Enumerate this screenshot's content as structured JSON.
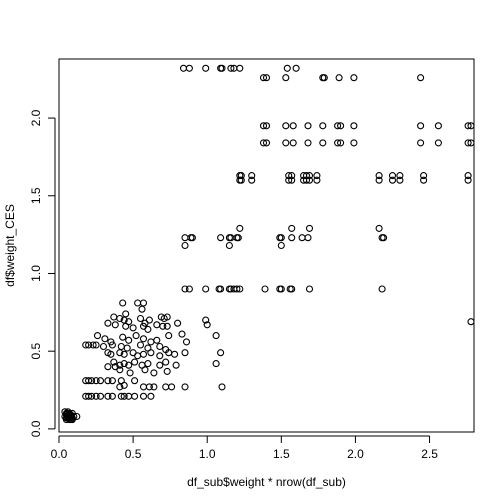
{
  "chart_data": {
    "type": "scatter",
    "title": "",
    "xlabel": "df_sub$weight * nrow(df_sub)",
    "ylabel": "df$weight_CES",
    "xlim": [
      0.0,
      2.8
    ],
    "ylim": [
      -0.02,
      2.38
    ],
    "x_ticks": [
      {
        "value": 0.0,
        "label": "0.0"
      },
      {
        "value": 0.5,
        "label": "0.5"
      },
      {
        "value": 1.0,
        "label": "1.0"
      },
      {
        "value": 1.5,
        "label": "1.5"
      },
      {
        "value": 2.0,
        "label": "2.0"
      },
      {
        "value": 2.5,
        "label": "2.5"
      }
    ],
    "y_ticks": [
      {
        "value": 0.0,
        "label": "0.0"
      },
      {
        "value": 0.5,
        "label": "0.5"
      },
      {
        "value": 1.0,
        "label": "1.0"
      },
      {
        "value": 1.5,
        "label": "1.5"
      },
      {
        "value": 2.0,
        "label": "2.0"
      }
    ],
    "grid": false,
    "marker": "open-circle",
    "marker_color": "#000000",
    "points": [
      [
        0.84,
        2.32
      ],
      [
        0.88,
        2.32
      ],
      [
        0.99,
        2.32
      ],
      [
        1.09,
        2.32
      ],
      [
        1.1,
        2.32
      ],
      [
        1.16,
        2.32
      ],
      [
        1.18,
        2.32
      ],
      [
        1.22,
        2.32
      ],
      [
        1.54,
        2.32
      ],
      [
        1.6,
        2.32
      ],
      [
        1.38,
        2.26
      ],
      [
        1.4,
        2.26
      ],
      [
        1.53,
        2.26
      ],
      [
        1.78,
        2.26
      ],
      [
        1.79,
        2.26
      ],
      [
        1.89,
        2.26
      ],
      [
        1.99,
        2.26
      ],
      [
        2.44,
        2.26
      ],
      [
        1.38,
        1.95
      ],
      [
        1.4,
        1.95
      ],
      [
        1.53,
        1.95
      ],
      [
        1.58,
        1.95
      ],
      [
        1.68,
        1.95
      ],
      [
        1.78,
        1.95
      ],
      [
        1.88,
        1.95
      ],
      [
        1.9,
        1.95
      ],
      [
        1.99,
        1.95
      ],
      [
        2.44,
        1.95
      ],
      [
        2.56,
        1.95
      ],
      [
        2.76,
        1.95
      ],
      [
        2.78,
        1.95
      ],
      [
        1.38,
        1.84
      ],
      [
        1.4,
        1.84
      ],
      [
        1.53,
        1.84
      ],
      [
        1.58,
        1.84
      ],
      [
        1.68,
        1.84
      ],
      [
        1.78,
        1.84
      ],
      [
        1.88,
        1.84
      ],
      [
        1.9,
        1.84
      ],
      [
        1.99,
        1.84
      ],
      [
        2.44,
        1.84
      ],
      [
        2.56,
        1.84
      ],
      [
        2.76,
        1.84
      ],
      [
        2.78,
        1.84
      ],
      [
        1.22,
        1.63
      ],
      [
        1.23,
        1.63
      ],
      [
        1.3,
        1.63
      ],
      [
        1.55,
        1.63
      ],
      [
        1.57,
        1.63
      ],
      [
        1.65,
        1.63
      ],
      [
        1.67,
        1.63
      ],
      [
        1.69,
        1.63
      ],
      [
        1.74,
        1.63
      ],
      [
        2.16,
        1.63
      ],
      [
        2.25,
        1.63
      ],
      [
        2.3,
        1.63
      ],
      [
        2.46,
        1.63
      ],
      [
        2.76,
        1.63
      ],
      [
        1.22,
        1.6
      ],
      [
        1.23,
        1.6
      ],
      [
        1.3,
        1.6
      ],
      [
        1.55,
        1.6
      ],
      [
        1.57,
        1.6
      ],
      [
        1.65,
        1.6
      ],
      [
        1.67,
        1.6
      ],
      [
        1.69,
        1.6
      ],
      [
        1.74,
        1.6
      ],
      [
        2.16,
        1.6
      ],
      [
        2.25,
        1.6
      ],
      [
        2.3,
        1.6
      ],
      [
        2.46,
        1.6
      ],
      [
        2.76,
        1.6
      ],
      [
        1.22,
        1.29
      ],
      [
        1.57,
        1.29
      ],
      [
        1.69,
        1.29
      ],
      [
        2.16,
        1.29
      ],
      [
        0.85,
        1.23
      ],
      [
        0.89,
        1.23
      ],
      [
        0.9,
        1.23
      ],
      [
        1.09,
        1.23
      ],
      [
        1.15,
        1.23
      ],
      [
        1.16,
        1.23
      ],
      [
        1.2,
        1.23
      ],
      [
        1.21,
        1.23
      ],
      [
        1.49,
        1.23
      ],
      [
        1.5,
        1.23
      ],
      [
        1.57,
        1.23
      ],
      [
        1.64,
        1.23
      ],
      [
        1.68,
        1.23
      ],
      [
        2.18,
        1.23
      ],
      [
        2.19,
        1.23
      ],
      [
        0.85,
        1.18
      ],
      [
        1.15,
        1.18
      ],
      [
        1.5,
        1.18
      ],
      [
        0.85,
        0.9
      ],
      [
        0.88,
        0.9
      ],
      [
        0.99,
        0.9
      ],
      [
        1.08,
        0.9
      ],
      [
        1.09,
        0.9
      ],
      [
        1.15,
        0.9
      ],
      [
        1.16,
        0.9
      ],
      [
        1.18,
        0.9
      ],
      [
        1.2,
        0.9
      ],
      [
        1.22,
        0.9
      ],
      [
        1.39,
        0.9
      ],
      [
        1.49,
        0.9
      ],
      [
        1.5,
        0.9
      ],
      [
        1.56,
        0.9
      ],
      [
        1.57,
        0.9
      ],
      [
        1.69,
        0.9
      ],
      [
        2.18,
        0.9
      ],
      [
        2.78,
        0.69
      ],
      [
        0.99,
        0.7
      ],
      [
        1.0,
        0.67
      ],
      [
        1.06,
        0.6
      ],
      [
        1.09,
        0.49
      ],
      [
        1.06,
        0.42
      ],
      [
        1.1,
        0.27
      ],
      [
        0.43,
        0.81
      ],
      [
        0.45,
        0.74
      ],
      [
        0.53,
        0.81
      ],
      [
        0.57,
        0.81
      ],
      [
        0.56,
        0.77
      ],
      [
        0.37,
        0.72
      ],
      [
        0.41,
        0.71
      ],
      [
        0.44,
        0.7
      ],
      [
        0.47,
        0.69
      ],
      [
        0.55,
        0.71
      ],
      [
        0.58,
        0.68
      ],
      [
        0.61,
        0.7
      ],
      [
        0.69,
        0.72
      ],
      [
        0.71,
        0.71
      ],
      [
        0.73,
        0.72
      ],
      [
        0.33,
        0.68
      ],
      [
        0.38,
        0.67
      ],
      [
        0.45,
        0.66
      ],
      [
        0.5,
        0.65
      ],
      [
        0.57,
        0.66
      ],
      [
        0.6,
        0.64
      ],
      [
        0.66,
        0.67
      ],
      [
        0.7,
        0.66
      ],
      [
        0.73,
        0.66
      ],
      [
        0.8,
        0.68
      ],
      [
        0.26,
        0.6
      ],
      [
        0.31,
        0.58
      ],
      [
        0.35,
        0.56
      ],
      [
        0.43,
        0.59
      ],
      [
        0.47,
        0.57
      ],
      [
        0.52,
        0.6
      ],
      [
        0.57,
        0.58
      ],
      [
        0.62,
        0.56
      ],
      [
        0.66,
        0.57
      ],
      [
        0.74,
        0.6
      ],
      [
        0.83,
        0.61
      ],
      [
        0.86,
        0.56
      ],
      [
        0.18,
        0.54
      ],
      [
        0.2,
        0.54
      ],
      [
        0.23,
        0.54
      ],
      [
        0.25,
        0.54
      ],
      [
        0.3,
        0.53
      ],
      [
        0.36,
        0.54
      ],
      [
        0.42,
        0.53
      ],
      [
        0.46,
        0.52
      ],
      [
        0.55,
        0.54
      ],
      [
        0.6,
        0.52
      ],
      [
        0.68,
        0.53
      ],
      [
        0.72,
        0.51
      ],
      [
        0.33,
        0.49
      ],
      [
        0.35,
        0.48
      ],
      [
        0.41,
        0.49
      ],
      [
        0.44,
        0.48
      ],
      [
        0.5,
        0.49
      ],
      [
        0.53,
        0.47
      ],
      [
        0.57,
        0.48
      ],
      [
        0.62,
        0.49
      ],
      [
        0.68,
        0.47
      ],
      [
        0.74,
        0.49
      ],
      [
        0.78,
        0.48
      ],
      [
        0.85,
        0.49
      ],
      [
        0.37,
        0.43
      ],
      [
        0.41,
        0.41
      ],
      [
        0.44,
        0.42
      ],
      [
        0.47,
        0.41
      ],
      [
        0.51,
        0.43
      ],
      [
        0.56,
        0.41
      ],
      [
        0.6,
        0.42
      ],
      [
        0.68,
        0.41
      ],
      [
        0.72,
        0.43
      ],
      [
        0.79,
        0.41
      ],
      [
        0.33,
        0.4
      ],
      [
        0.38,
        0.4
      ],
      [
        0.41,
        0.38
      ],
      [
        0.48,
        0.36
      ],
      [
        0.58,
        0.38
      ],
      [
        0.64,
        0.36
      ],
      [
        0.73,
        0.37
      ],
      [
        0.18,
        0.31
      ],
      [
        0.2,
        0.31
      ],
      [
        0.22,
        0.31
      ],
      [
        0.25,
        0.31
      ],
      [
        0.28,
        0.31
      ],
      [
        0.33,
        0.31
      ],
      [
        0.36,
        0.31
      ],
      [
        0.42,
        0.31
      ],
      [
        0.51,
        0.31
      ],
      [
        0.41,
        0.27
      ],
      [
        0.44,
        0.28
      ],
      [
        0.57,
        0.27
      ],
      [
        0.61,
        0.27
      ],
      [
        0.64,
        0.27
      ],
      [
        0.72,
        0.27
      ],
      [
        0.76,
        0.27
      ],
      [
        0.85,
        0.27
      ],
      [
        0.18,
        0.21
      ],
      [
        0.2,
        0.21
      ],
      [
        0.22,
        0.21
      ],
      [
        0.25,
        0.21
      ],
      [
        0.28,
        0.21
      ],
      [
        0.33,
        0.21
      ],
      [
        0.36,
        0.21
      ],
      [
        0.42,
        0.21
      ],
      [
        0.44,
        0.21
      ],
      [
        0.47,
        0.21
      ],
      [
        0.51,
        0.21
      ],
      [
        0.57,
        0.21
      ],
      [
        0.62,
        0.21
      ],
      [
        0.04,
        0.11
      ],
      [
        0.05,
        0.1
      ],
      [
        0.06,
        0.11
      ],
      [
        0.07,
        0.1
      ],
      [
        0.08,
        0.09
      ],
      [
        0.09,
        0.1
      ],
      [
        0.04,
        0.08
      ],
      [
        0.05,
        0.07
      ],
      [
        0.06,
        0.08
      ],
      [
        0.07,
        0.07
      ],
      [
        0.08,
        0.08
      ],
      [
        0.09,
        0.07
      ],
      [
        0.1,
        0.08
      ],
      [
        0.12,
        0.08
      ],
      [
        0.05,
        0.06
      ],
      [
        0.06,
        0.07
      ],
      [
        0.07,
        0.06
      ],
      [
        0.08,
        0.06
      ],
      [
        0.09,
        0.06
      ],
      [
        0.05,
        0.09
      ],
      [
        0.07,
        0.09
      ],
      [
        0.06,
        0.1
      ]
    ]
  }
}
